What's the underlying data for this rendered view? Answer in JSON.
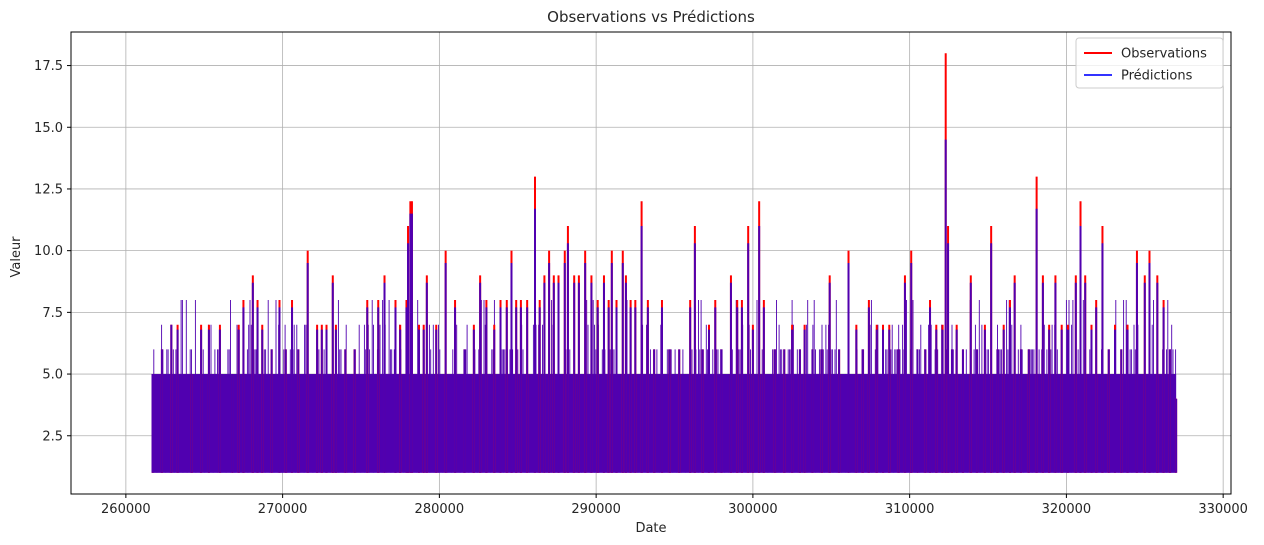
{
  "chart_data": {
    "type": "line",
    "title": "Observations vs Prédictions",
    "xlabel": "Date",
    "ylabel": "Valeur",
    "xlim": [
      256500,
      330500
    ],
    "ylim": [
      0.14,
      18.86
    ],
    "xticks": [
      260000,
      270000,
      280000,
      290000,
      300000,
      310000,
      320000,
      330000
    ],
    "xtick_labels": [
      "260000",
      "270000",
      "280000",
      "290000",
      "300000",
      "310000",
      "320000",
      "330000"
    ],
    "yticks": [
      2.5,
      5.0,
      7.5,
      10.0,
      12.5,
      15.0,
      17.5
    ],
    "ytick_labels": [
      "2.5",
      "5.0",
      "7.5",
      "10.0",
      "12.5",
      "15.0",
      "17.5"
    ],
    "grid": true,
    "legend_position": "upper right",
    "x_range": [
      261700,
      327000
    ],
    "baseline_min": 1.0,
    "series": [
      {
        "name": "Observations",
        "color": "#ff0000",
        "peaks": [
          [
            261700,
            5
          ],
          [
            262300,
            6
          ],
          [
            262900,
            7
          ],
          [
            263300,
            7
          ],
          [
            264200,
            5
          ],
          [
            264800,
            7
          ],
          [
            265300,
            7
          ],
          [
            266000,
            7
          ],
          [
            266800,
            5
          ],
          [
            267200,
            7
          ],
          [
            267500,
            8
          ],
          [
            268100,
            9
          ],
          [
            268400,
            8
          ],
          [
            268700,
            7
          ],
          [
            269300,
            6
          ],
          [
            269800,
            8
          ],
          [
            270200,
            6
          ],
          [
            270600,
            8
          ],
          [
            271000,
            6
          ],
          [
            271600,
            10
          ],
          [
            272200,
            7
          ],
          [
            272500,
            7
          ],
          [
            272800,
            7
          ],
          [
            273200,
            9
          ],
          [
            273400,
            7
          ],
          [
            274000,
            6
          ],
          [
            274600,
            6
          ],
          [
            275400,
            8
          ],
          [
            276100,
            8
          ],
          [
            276500,
            9
          ],
          [
            277200,
            8
          ],
          [
            277500,
            7
          ],
          [
            277900,
            8
          ],
          [
            278000,
            11
          ],
          [
            278150,
            12
          ],
          [
            278250,
            12
          ],
          [
            278700,
            7
          ],
          [
            279000,
            7
          ],
          [
            279200,
            9
          ],
          [
            279800,
            7
          ],
          [
            280400,
            10
          ],
          [
            281000,
            8
          ],
          [
            281600,
            6
          ],
          [
            282200,
            7
          ],
          [
            282600,
            9
          ],
          [
            283000,
            8
          ],
          [
            283500,
            7
          ],
          [
            283900,
            8
          ],
          [
            284300,
            8
          ],
          [
            284600,
            10
          ],
          [
            284900,
            8
          ],
          [
            285200,
            8
          ],
          [
            285600,
            8
          ],
          [
            286100,
            13
          ],
          [
            286400,
            8
          ],
          [
            286700,
            9
          ],
          [
            287000,
            10
          ],
          [
            287300,
            9
          ],
          [
            287600,
            9
          ],
          [
            288000,
            10
          ],
          [
            288200,
            11
          ],
          [
            288600,
            9
          ],
          [
            288900,
            9
          ],
          [
            289300,
            10
          ],
          [
            289700,
            9
          ],
          [
            290100,
            8
          ],
          [
            290500,
            9
          ],
          [
            290800,
            8
          ],
          [
            291000,
            10
          ],
          [
            291300,
            8
          ],
          [
            291700,
            10
          ],
          [
            291900,
            9
          ],
          [
            292200,
            8
          ],
          [
            292500,
            8
          ],
          [
            292900,
            12
          ],
          [
            293300,
            8
          ],
          [
            293700,
            6
          ],
          [
            294200,
            8
          ],
          [
            294700,
            6
          ],
          [
            295300,
            6
          ],
          [
            296000,
            8
          ],
          [
            296300,
            11
          ],
          [
            296800,
            6
          ],
          [
            297200,
            7
          ],
          [
            297600,
            8
          ],
          [
            298000,
            6
          ],
          [
            298600,
            9
          ],
          [
            299000,
            8
          ],
          [
            299300,
            8
          ],
          [
            299700,
            11
          ],
          [
            300000,
            7
          ],
          [
            300400,
            12
          ],
          [
            300700,
            8
          ],
          [
            301400,
            6
          ],
          [
            302000,
            6
          ],
          [
            302500,
            7
          ],
          [
            303000,
            6
          ],
          [
            303300,
            7
          ],
          [
            303800,
            6
          ],
          [
            304400,
            6
          ],
          [
            304900,
            9
          ],
          [
            305500,
            6
          ],
          [
            306100,
            10
          ],
          [
            306600,
            7
          ],
          [
            307000,
            6
          ],
          [
            307400,
            8
          ],
          [
            307900,
            7
          ],
          [
            308300,
            7
          ],
          [
            308700,
            7
          ],
          [
            309300,
            6
          ],
          [
            309700,
            9
          ],
          [
            310100,
            10
          ],
          [
            310500,
            6
          ],
          [
            311000,
            6
          ],
          [
            311300,
            8
          ],
          [
            311700,
            7
          ],
          [
            312100,
            7
          ],
          [
            312300,
            18
          ],
          [
            312450,
            11
          ],
          [
            312700,
            6
          ],
          [
            313000,
            7
          ],
          [
            313400,
            6
          ],
          [
            313900,
            9
          ],
          [
            314300,
            6
          ],
          [
            314800,
            7
          ],
          [
            315200,
            11
          ],
          [
            315600,
            6
          ],
          [
            316000,
            7
          ],
          [
            316400,
            8
          ],
          [
            316700,
            9
          ],
          [
            317100,
            6
          ],
          [
            317600,
            6
          ],
          [
            318100,
            13
          ],
          [
            318500,
            9
          ],
          [
            318900,
            7
          ],
          [
            319300,
            9
          ],
          [
            319700,
            7
          ],
          [
            320100,
            7
          ],
          [
            320600,
            9
          ],
          [
            320900,
            12
          ],
          [
            321200,
            9
          ],
          [
            321600,
            7
          ],
          [
            321900,
            8
          ],
          [
            322300,
            11
          ],
          [
            322700,
            6
          ],
          [
            323100,
            7
          ],
          [
            323500,
            6
          ],
          [
            323900,
            7
          ],
          [
            324500,
            10
          ],
          [
            325000,
            9
          ],
          [
            325300,
            10
          ],
          [
            325800,
            9
          ],
          [
            326200,
            8
          ],
          [
            326600,
            6
          ],
          [
            327000,
            4
          ]
        ]
      },
      {
        "name": "Prédictions",
        "color": "#3333ff",
        "peaks": [
          [
            261700,
            5
          ],
          [
            262300,
            6
          ],
          [
            262900,
            7
          ],
          [
            263300,
            6.8
          ],
          [
            264200,
            5
          ],
          [
            264800,
            6.8
          ],
          [
            265300,
            6.8
          ],
          [
            266000,
            6.8
          ],
          [
            266800,
            5
          ],
          [
            267200,
            6.8
          ],
          [
            267500,
            7.7
          ],
          [
            268100,
            8.7
          ],
          [
            268400,
            7.7
          ],
          [
            268700,
            6.8
          ],
          [
            269300,
            6
          ],
          [
            269800,
            7.7
          ],
          [
            270200,
            6
          ],
          [
            270600,
            7.7
          ],
          [
            271000,
            6
          ],
          [
            271600,
            9.5
          ],
          [
            272200,
            6.8
          ],
          [
            272500,
            6.8
          ],
          [
            272800,
            6.8
          ],
          [
            273200,
            8.7
          ],
          [
            273400,
            6.8
          ],
          [
            274000,
            6
          ],
          [
            274600,
            6
          ],
          [
            275400,
            7.7
          ],
          [
            276100,
            7.7
          ],
          [
            276500,
            8.7
          ],
          [
            277200,
            7.7
          ],
          [
            277500,
            6.8
          ],
          [
            277900,
            7.7
          ],
          [
            278000,
            10.3
          ],
          [
            278150,
            11.5
          ],
          [
            278250,
            11.5
          ],
          [
            278700,
            6.8
          ],
          [
            279000,
            6.8
          ],
          [
            279200,
            8.7
          ],
          [
            279800,
            6.8
          ],
          [
            280400,
            9.5
          ],
          [
            281000,
            7.7
          ],
          [
            281600,
            6
          ],
          [
            282200,
            6.8
          ],
          [
            282600,
            8.7
          ],
          [
            283000,
            7.7
          ],
          [
            283500,
            6.8
          ],
          [
            283900,
            7.7
          ],
          [
            284300,
            7.7
          ],
          [
            284600,
            9.5
          ],
          [
            284900,
            7.7
          ],
          [
            285200,
            7.7
          ],
          [
            285600,
            7.7
          ],
          [
            286100,
            11.7
          ],
          [
            286400,
            7.7
          ],
          [
            286700,
            8.7
          ],
          [
            287000,
            9.5
          ],
          [
            287300,
            8.7
          ],
          [
            287600,
            8.7
          ],
          [
            288000,
            9.5
          ],
          [
            288200,
            10.3
          ],
          [
            288600,
            8.7
          ],
          [
            288900,
            8.7
          ],
          [
            289300,
            9.5
          ],
          [
            289700,
            8.7
          ],
          [
            290100,
            7.7
          ],
          [
            290500,
            8.7
          ],
          [
            290800,
            7.7
          ],
          [
            291000,
            9.5
          ],
          [
            291300,
            7.7
          ],
          [
            291700,
            9.5
          ],
          [
            291900,
            8.7
          ],
          [
            292200,
            7.7
          ],
          [
            292500,
            7.7
          ],
          [
            292900,
            11.0
          ],
          [
            293300,
            7.7
          ],
          [
            293700,
            6
          ],
          [
            294200,
            7.7
          ],
          [
            294700,
            6
          ],
          [
            295300,
            6
          ],
          [
            296000,
            7.7
          ],
          [
            296300,
            10.3
          ],
          [
            296800,
            6
          ],
          [
            297200,
            6.8
          ],
          [
            297600,
            7.7
          ],
          [
            298000,
            6
          ],
          [
            298600,
            8.7
          ],
          [
            299000,
            7.7
          ],
          [
            299300,
            7.7
          ],
          [
            299700,
            10.3
          ],
          [
            300000,
            6.8
          ],
          [
            300400,
            11.0
          ],
          [
            300700,
            7.7
          ],
          [
            301400,
            6
          ],
          [
            302000,
            6
          ],
          [
            302500,
            6.8
          ],
          [
            303000,
            6
          ],
          [
            303300,
            6.8
          ],
          [
            303800,
            6
          ],
          [
            304400,
            6
          ],
          [
            304900,
            8.7
          ],
          [
            305500,
            6
          ],
          [
            306100,
            9.5
          ],
          [
            306600,
            6.8
          ],
          [
            307000,
            6
          ],
          [
            307400,
            7.7
          ],
          [
            307900,
            6.8
          ],
          [
            308300,
            6.8
          ],
          [
            308700,
            6.8
          ],
          [
            309300,
            6
          ],
          [
            309700,
            8.7
          ],
          [
            310100,
            9.5
          ],
          [
            310500,
            6
          ],
          [
            311000,
            6
          ],
          [
            311300,
            7.7
          ],
          [
            311700,
            6.8
          ],
          [
            312100,
            6.8
          ],
          [
            312300,
            14.5
          ],
          [
            312450,
            10.3
          ],
          [
            312700,
            6
          ],
          [
            313000,
            6.8
          ],
          [
            313400,
            6
          ],
          [
            313900,
            8.7
          ],
          [
            314300,
            6
          ],
          [
            314800,
            6.8
          ],
          [
            315200,
            10.3
          ],
          [
            315600,
            6
          ],
          [
            316000,
            6.8
          ],
          [
            316400,
            7.7
          ],
          [
            316700,
            8.7
          ],
          [
            317100,
            6
          ],
          [
            317600,
            6
          ],
          [
            318100,
            11.7
          ],
          [
            318500,
            8.7
          ],
          [
            318900,
            6.8
          ],
          [
            319300,
            8.7
          ],
          [
            319700,
            6.8
          ],
          [
            320100,
            6.8
          ],
          [
            320600,
            8.7
          ],
          [
            320900,
            11.0
          ],
          [
            321200,
            8.7
          ],
          [
            321600,
            6.8
          ],
          [
            321900,
            7.7
          ],
          [
            322300,
            10.3
          ],
          [
            322700,
            6
          ],
          [
            323100,
            6.8
          ],
          [
            323500,
            6
          ],
          [
            323900,
            6.8
          ],
          [
            324500,
            9.5
          ],
          [
            325000,
            8.7
          ],
          [
            325300,
            9.5
          ],
          [
            325800,
            8.7
          ],
          [
            326200,
            7.7
          ],
          [
            326600,
            6
          ],
          [
            327000,
            4
          ]
        ]
      }
    ],
    "blend_color": "#5000b0",
    "dense_level": 5
  },
  "styles": {
    "grid_color": "#b0b0b0",
    "axis_color": "#000000",
    "legend_border": "#cccccc"
  }
}
